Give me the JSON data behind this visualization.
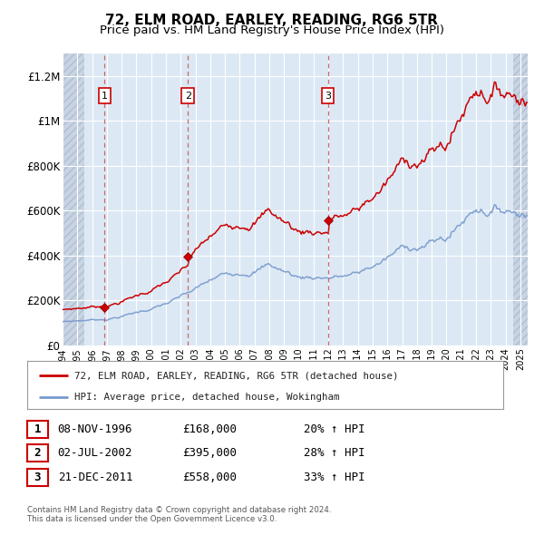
{
  "title": "72, ELM ROAD, EARLEY, READING, RG6 5TR",
  "subtitle": "Price paid vs. HM Land Registry's House Price Index (HPI)",
  "title_fontsize": 11,
  "subtitle_fontsize": 9.5,
  "background_color": "#ffffff",
  "plot_bg_color": "#dce9f5",
  "red_line_color": "#cc0000",
  "blue_line_color": "#7799cc",
  "sale_marker_color": "#cc0000",
  "vline_color": "#cc4444",
  "ylim": [
    0,
    1300000
  ],
  "yticks": [
    0,
    200000,
    400000,
    600000,
    800000,
    1000000,
    1200000
  ],
  "ytick_labels": [
    "£0",
    "£200K",
    "£400K",
    "£600K",
    "£800K",
    "£1M",
    "£1.2M"
  ],
  "grid_color": "#ffffff",
  "sales": [
    {
      "label": "1",
      "date_str": "08-NOV-1996",
      "year": 1996.854,
      "price": 168000,
      "pct": "20%",
      "direction": "↑"
    },
    {
      "label": "2",
      "date_str": "02-JUL-2002",
      "year": 2002.496,
      "price": 395000,
      "pct": "28%",
      "direction": "↑"
    },
    {
      "label": "3",
      "date_str": "21-DEC-2011",
      "year": 2011.969,
      "price": 558000,
      "pct": "33%",
      "direction": "↑"
    }
  ],
  "legend_label_red": "72, ELM ROAD, EARLEY, READING, RG6 5TR (detached house)",
  "legend_label_blue": "HPI: Average price, detached house, Wokingham",
  "footer1": "Contains HM Land Registry data © Crown copyright and database right 2024.",
  "footer2": "This data is licensed under the Open Government Licence v3.0.",
  "xmin": 1994.0,
  "xmax": 2025.5,
  "sale_box_color": "#ffffff",
  "sale_box_edge": "#cc0000",
  "hatch_color": "#c8d4e4"
}
